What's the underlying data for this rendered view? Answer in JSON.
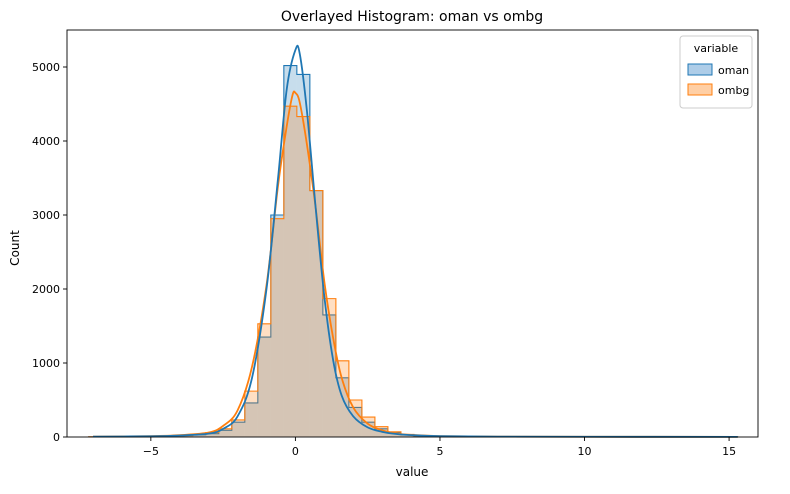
{
  "chart_data": {
    "type": "histogram",
    "title": "Overlayed Histogram: oman vs ombg",
    "xlabel": "value",
    "ylabel": "Count",
    "xlim": [
      -7.9,
      16.0
    ],
    "ylim": [
      0,
      5500
    ],
    "xticks": [
      -5,
      0,
      5,
      10,
      15
    ],
    "yticks": [
      0,
      1000,
      2000,
      3000,
      4000,
      5000
    ],
    "bin_edges": [
      -7.15,
      -6.7,
      -6.25,
      -5.8,
      -5.35,
      -4.9,
      -4.45,
      -4.0,
      -3.55,
      -3.1,
      -2.65,
      -2.2,
      -1.75,
      -1.3,
      -0.85,
      -0.4,
      0.05,
      0.5,
      0.95,
      1.4,
      1.85,
      2.3,
      2.75,
      3.2,
      3.65,
      4.1,
      4.55,
      5.0,
      5.45,
      5.9,
      6.35,
      6.8,
      7.25,
      7.7,
      8.15,
      8.6,
      9.05,
      9.5,
      9.95,
      10.4,
      10.85,
      11.3,
      11.75,
      12.2,
      12.65,
      13.1,
      13.55,
      14.0,
      14.45,
      14.9,
      15.3
    ],
    "legend": {
      "title": "variable",
      "position": "upper right"
    },
    "series": [
      {
        "name": "oman",
        "color": "#1f77b4",
        "fill": "#aecde8",
        "counts": [
          2,
          2,
          3,
          4,
          5,
          8,
          12,
          20,
          30,
          45,
          90,
          200,
          460,
          1350,
          3000,
          5020,
          4900,
          3330,
          1650,
          800,
          400,
          200,
          110,
          60,
          30,
          15,
          8,
          5,
          3,
          2,
          2,
          1,
          1,
          1,
          1,
          1,
          1,
          1,
          1,
          1,
          1,
          1,
          1,
          1,
          1,
          1,
          1,
          1,
          1,
          1
        ],
        "kde": [
          [
            -7.0,
            5
          ],
          [
            -5.0,
            10
          ],
          [
            -4.0,
            20
          ],
          [
            -3.0,
            45
          ],
          [
            -2.5,
            110
          ],
          [
            -2.0,
            280
          ],
          [
            -1.5,
            800
          ],
          [
            -1.0,
            2000
          ],
          [
            -0.6,
            3500
          ],
          [
            -0.3,
            4700
          ],
          [
            0.0,
            5230
          ],
          [
            0.15,
            5180
          ],
          [
            0.4,
            4400
          ],
          [
            0.7,
            3100
          ],
          [
            1.0,
            1900
          ],
          [
            1.3,
            1050
          ],
          [
            1.6,
            560
          ],
          [
            2.0,
            280
          ],
          [
            2.5,
            130
          ],
          [
            3.0,
            70
          ],
          [
            3.5,
            40
          ],
          [
            4.0,
            25
          ],
          [
            5.0,
            12
          ],
          [
            7.0,
            5
          ],
          [
            10.0,
            3
          ],
          [
            15.3,
            2
          ]
        ]
      },
      {
        "name": "ombg",
        "color": "#ff7f0e",
        "fill": "#ffcfa5",
        "counts": [
          2,
          2,
          3,
          4,
          5,
          8,
          12,
          20,
          35,
          60,
          110,
          230,
          620,
          1530,
          2950,
          4470,
          4330,
          3330,
          1870,
          1030,
          500,
          270,
          140,
          70,
          35,
          18,
          9,
          5,
          3,
          2,
          2,
          1,
          1,
          1,
          1,
          1,
          1,
          1,
          1,
          1,
          1,
          1,
          1,
          1,
          1,
          1,
          1,
          1,
          1,
          1
        ],
        "kde": [
          [
            -7.0,
            5
          ],
          [
            -5.0,
            12
          ],
          [
            -4.0,
            25
          ],
          [
            -3.0,
            60
          ],
          [
            -2.5,
            150
          ],
          [
            -2.0,
            360
          ],
          [
            -1.5,
            950
          ],
          [
            -1.0,
            2050
          ],
          [
            -0.6,
            3400
          ],
          [
            -0.3,
            4200
          ],
          [
            -0.1,
            4620
          ],
          [
            0.0,
            4650
          ],
          [
            0.15,
            4520
          ],
          [
            0.4,
            3950
          ],
          [
            0.7,
            3100
          ],
          [
            1.0,
            2100
          ],
          [
            1.3,
            1350
          ],
          [
            1.6,
            800
          ],
          [
            2.0,
            400
          ],
          [
            2.5,
            180
          ],
          [
            3.0,
            90
          ],
          [
            3.5,
            45
          ],
          [
            4.0,
            28
          ],
          [
            5.0,
            12
          ],
          [
            7.0,
            5
          ],
          [
            10.0,
            3
          ],
          [
            15.3,
            2
          ]
        ]
      }
    ]
  }
}
